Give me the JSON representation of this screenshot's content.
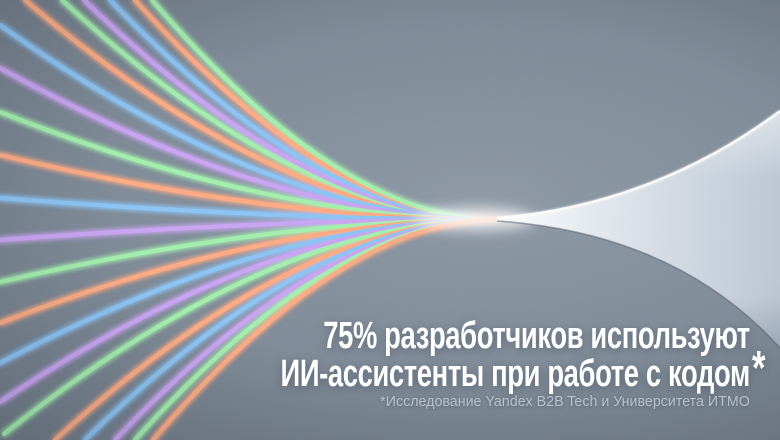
{
  "headline": {
    "line1": "75% разработчиков используют",
    "line2": "ИИ-ассистенты при работе с кодом",
    "superscript": "*"
  },
  "footnote": {
    "text": "*Исследование Yandex B2B Tech и Университета ИТМО"
  },
  "graphic": {
    "description": "neon-lines-converging-into-silver-fan",
    "focus": [
      495,
      219.5
    ],
    "palette": {
      "orange": "#ffab83",
      "green": "#a3f0ad",
      "blue": "#8bc4f5",
      "purple": "#c9a4f3"
    },
    "background": {
      "center": "#8e99a6",
      "mid": "#7e8a97",
      "edge": "#66717d"
    },
    "fan": {
      "bright": "#ffffff",
      "light": "#edf1f5",
      "mid": "#d7dee7",
      "dark": "#bdc8d5"
    },
    "text_colors": {
      "headline": "#ffffff",
      "footnote": "#b7c1cc"
    },
    "rays": [
      {
        "color": "orange",
        "edge": [
          25,
          0
        ]
      },
      {
        "color": "green",
        "edge": [
          62,
          0
        ]
      },
      {
        "color": "purple",
        "edge": [
          84,
          0
        ]
      },
      {
        "color": "blue",
        "edge": [
          110,
          0
        ]
      },
      {
        "color": "orange",
        "edge": [
          135,
          0
        ]
      },
      {
        "color": "green",
        "edge": [
          152,
          0
        ]
      },
      {
        "color": "blue",
        "edge": [
          0,
          25
        ]
      },
      {
        "color": "purple",
        "edge": [
          0,
          68
        ]
      },
      {
        "color": "green",
        "edge": [
          0,
          112
        ]
      },
      {
        "color": "orange",
        "edge": [
          0,
          155
        ]
      },
      {
        "color": "blue",
        "edge": [
          0,
          198
        ]
      },
      {
        "color": "purple",
        "edge": [
          0,
          240
        ]
      },
      {
        "color": "green",
        "edge": [
          0,
          282
        ]
      },
      {
        "color": "orange",
        "edge": [
          0,
          323
        ]
      },
      {
        "color": "blue",
        "edge": [
          0,
          363
        ]
      },
      {
        "color": "purple",
        "edge": [
          0,
          402
        ]
      },
      {
        "color": "green",
        "edge": [
          4,
          434
        ]
      },
      {
        "color": "orange",
        "edge": [
          55,
          440
        ]
      },
      {
        "color": "blue",
        "edge": [
          85,
          440
        ]
      },
      {
        "color": "purple",
        "edge": [
          115,
          440
        ]
      },
      {
        "color": "green",
        "edge": [
          135,
          440
        ]
      },
      {
        "color": "orange",
        "edge": [
          153,
          440
        ]
      }
    ]
  }
}
